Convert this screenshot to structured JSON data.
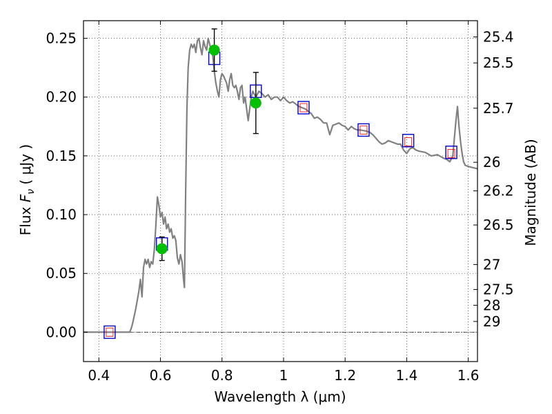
{
  "chart_data": {
    "type": "scatter",
    "xlabel": "Wavelength  λ (μm)",
    "ylabel": "Flux  F_ν  ( μJy )",
    "ylabel_parts": {
      "prefix": "Flux  ",
      "symbol": "F",
      "subscript": "ν",
      "suffix": "  ( μJy )"
    },
    "ylabel_right": "Magnitude (AB)",
    "xlim": [
      0.35,
      1.63
    ],
    "ylim": [
      -0.025,
      0.265
    ],
    "grid": true,
    "grid_style": "dotted",
    "x_ticks": [
      0.4,
      0.6,
      0.8,
      1.0,
      1.2,
      1.4,
      1.6
    ],
    "x_tick_labels": [
      "0.4",
      "0.6",
      "0.8",
      "1",
      "1.2",
      "1.4",
      "1.6"
    ],
    "y_ticks": [
      0.0,
      0.05,
      0.1,
      0.15,
      0.2,
      0.25
    ],
    "y_tick_labels": [
      "0.00",
      "0.05",
      "0.10",
      "0.15",
      "0.20",
      "0.25"
    ],
    "mag_ticks": [
      25.4,
      25.5,
      25.7,
      26,
      26.2,
      26.5,
      27,
      27.5,
      28,
      29
    ],
    "mag_tick_labels": [
      "25.4",
      "25.5",
      "25.7",
      "26",
      "26.2",
      "26.5",
      "27",
      "27.5",
      "28",
      "29"
    ],
    "colors": {
      "model": "#808080",
      "observed": "#00c000",
      "model_box": "#0000cc",
      "predicted": "#ff0000",
      "zero_line": "#000000"
    },
    "series": [
      {
        "kind": "line",
        "points": [
          [
            0.35,
            0.0
          ],
          [
            0.5,
            0.0
          ],
          [
            0.505,
            0.003
          ],
          [
            0.51,
            0.008
          ],
          [
            0.52,
            0.02
          ],
          [
            0.53,
            0.035
          ],
          [
            0.535,
            0.045
          ],
          [
            0.54,
            0.03
          ],
          [
            0.545,
            0.055
          ],
          [
            0.55,
            0.062
          ],
          [
            0.555,
            0.058
          ],
          [
            0.56,
            0.062
          ],
          [
            0.565,
            0.055
          ],
          [
            0.57,
            0.06
          ],
          [
            0.575,
            0.058
          ],
          [
            0.58,
            0.07
          ],
          [
            0.585,
            0.09
          ],
          [
            0.59,
            0.115
          ],
          [
            0.595,
            0.108
          ],
          [
            0.6,
            0.098
          ],
          [
            0.605,
            0.102
          ],
          [
            0.61,
            0.092
          ],
          [
            0.615,
            0.098
          ],
          [
            0.62,
            0.088
          ],
          [
            0.625,
            0.092
          ],
          [
            0.63,
            0.085
          ],
          [
            0.635,
            0.088
          ],
          [
            0.64,
            0.08
          ],
          [
            0.645,
            0.082
          ],
          [
            0.65,
            0.078
          ],
          [
            0.655,
            0.063
          ],
          [
            0.66,
            0.058
          ],
          [
            0.665,
            0.066
          ],
          [
            0.67,
            0.06
          ],
          [
            0.675,
            0.045
          ],
          [
            0.678,
            0.038
          ],
          [
            0.682,
            0.12
          ],
          [
            0.686,
            0.19
          ],
          [
            0.69,
            0.225
          ],
          [
            0.695,
            0.24
          ],
          [
            0.7,
            0.245
          ],
          [
            0.705,
            0.242
          ],
          [
            0.71,
            0.245
          ],
          [
            0.715,
            0.238
          ],
          [
            0.72,
            0.248
          ],
          [
            0.725,
            0.25
          ],
          [
            0.73,
            0.242
          ],
          [
            0.735,
            0.236
          ],
          [
            0.74,
            0.248
          ],
          [
            0.745,
            0.243
          ],
          [
            0.75,
            0.24
          ],
          [
            0.755,
            0.25
          ],
          [
            0.76,
            0.245
          ],
          [
            0.765,
            0.24
          ],
          [
            0.77,
            0.235
          ],
          [
            0.775,
            0.222
          ],
          [
            0.78,
            0.212
          ],
          [
            0.785,
            0.205
          ],
          [
            0.79,
            0.2
          ],
          [
            0.795,
            0.215
          ],
          [
            0.8,
            0.22
          ],
          [
            0.805,
            0.218
          ],
          [
            0.81,
            0.215
          ],
          [
            0.815,
            0.212
          ],
          [
            0.82,
            0.205
          ],
          [
            0.825,
            0.215
          ],
          [
            0.83,
            0.22
          ],
          [
            0.835,
            0.21
          ],
          [
            0.84,
            0.208
          ],
          [
            0.845,
            0.21
          ],
          [
            0.85,
            0.205
          ],
          [
            0.855,
            0.198
          ],
          [
            0.86,
            0.208
          ],
          [
            0.865,
            0.21
          ],
          [
            0.87,
            0.195
          ],
          [
            0.875,
            0.2
          ],
          [
            0.88,
            0.19
          ],
          [
            0.885,
            0.18
          ],
          [
            0.89,
            0.19
          ],
          [
            0.895,
            0.2
          ],
          [
            0.9,
            0.205
          ],
          [
            0.91,
            0.2
          ],
          [
            0.92,
            0.205
          ],
          [
            0.93,
            0.203
          ],
          [
            0.94,
            0.2
          ],
          [
            0.95,
            0.202
          ],
          [
            0.96,
            0.198
          ],
          [
            0.97,
            0.2
          ],
          [
            0.98,
            0.2
          ],
          [
            0.99,
            0.197
          ],
          [
            1.0,
            0.2
          ],
          [
            1.01,
            0.197
          ],
          [
            1.02,
            0.195
          ],
          [
            1.03,
            0.196
          ],
          [
            1.04,
            0.194
          ],
          [
            1.05,
            0.192
          ],
          [
            1.07,
            0.19
          ],
          [
            1.09,
            0.186
          ],
          [
            1.1,
            0.182
          ],
          [
            1.11,
            0.183
          ],
          [
            1.12,
            0.181
          ],
          [
            1.13,
            0.178
          ],
          [
            1.14,
            0.178
          ],
          [
            1.15,
            0.168
          ],
          [
            1.16,
            0.176
          ],
          [
            1.17,
            0.177
          ],
          [
            1.18,
            0.178
          ],
          [
            1.19,
            0.176
          ],
          [
            1.2,
            0.175
          ],
          [
            1.21,
            0.172
          ],
          [
            1.22,
            0.175
          ],
          [
            1.23,
            0.173
          ],
          [
            1.24,
            0.172
          ],
          [
            1.25,
            0.172
          ],
          [
            1.27,
            0.171
          ],
          [
            1.28,
            0.17
          ],
          [
            1.29,
            0.168
          ],
          [
            1.3,
            0.165
          ],
          [
            1.31,
            0.162
          ],
          [
            1.32,
            0.16
          ],
          [
            1.33,
            0.161
          ],
          [
            1.34,
            0.163
          ],
          [
            1.35,
            0.162
          ],
          [
            1.36,
            0.161
          ],
          [
            1.37,
            0.16
          ],
          [
            1.38,
            0.16
          ],
          [
            1.39,
            0.155
          ],
          [
            1.4,
            0.152
          ],
          [
            1.41,
            0.156
          ],
          [
            1.42,
            0.157
          ],
          [
            1.43,
            0.155
          ],
          [
            1.44,
            0.154
          ],
          [
            1.46,
            0.153
          ],
          [
            1.48,
            0.15
          ],
          [
            1.5,
            0.151
          ],
          [
            1.52,
            0.148
          ],
          [
            1.53,
            0.147
          ],
          [
            1.54,
            0.145
          ],
          [
            1.55,
            0.15
          ],
          [
            1.555,
            0.165
          ],
          [
            1.56,
            0.18
          ],
          [
            1.565,
            0.192
          ],
          [
            1.57,
            0.175
          ],
          [
            1.575,
            0.162
          ],
          [
            1.58,
            0.152
          ],
          [
            1.585,
            0.145
          ],
          [
            1.59,
            0.142
          ],
          [
            1.6,
            0.141
          ],
          [
            1.615,
            0.14
          ],
          [
            1.63,
            0.139
          ]
        ]
      },
      {
        "kind": "box",
        "points": [
          [
            0.435,
            0.0
          ],
          [
            0.605,
            0.075
          ],
          [
            0.775,
            0.233
          ],
          [
            0.91,
            0.205
          ],
          [
            1.065,
            0.191
          ],
          [
            1.26,
            0.172
          ],
          [
            1.405,
            0.163
          ],
          [
            1.545,
            0.153
          ]
        ]
      },
      {
        "kind": "small-box",
        "points": [
          [
            0.435,
            0.0
          ],
          [
            1.065,
            0.191
          ],
          [
            1.26,
            0.172
          ],
          [
            1.405,
            0.162
          ],
          [
            1.545,
            0.152
          ]
        ]
      },
      {
        "kind": "point-errorbar",
        "points": [
          {
            "x": 0.605,
            "y": 0.071,
            "yerr": 0.01
          },
          {
            "x": 0.775,
            "y": 0.24,
            "yerr": 0.018
          },
          {
            "x": 0.91,
            "y": 0.195,
            "yerr": 0.026
          }
        ]
      }
    ]
  }
}
